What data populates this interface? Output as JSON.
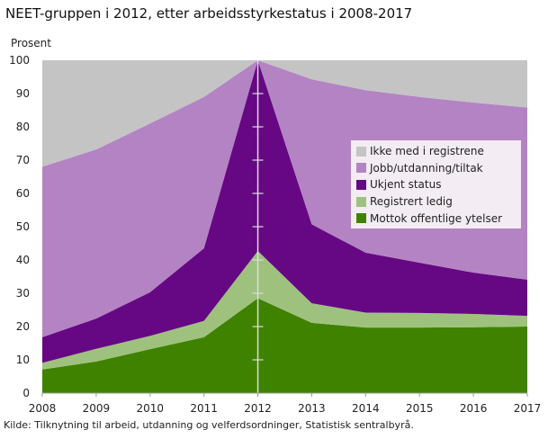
{
  "chart_data": {
    "type": "area",
    "stacked": true,
    "title": "NEET-gruppen i 2012, etter arbeidsstyrkestatus i 2008-2017",
    "ylabel": "Prosent",
    "xlabel": "",
    "ylim": [
      0,
      100
    ],
    "yticks": [
      0,
      10,
      20,
      30,
      40,
      50,
      60,
      70,
      80,
      90,
      100
    ],
    "x": [
      "2008",
      "2009",
      "2010",
      "2011",
      "2012",
      "2013",
      "2014",
      "2015",
      "2016",
      "2017"
    ],
    "legend_position": "right",
    "series": [
      {
        "name": "Mottok offentlige ytelser",
        "color": "#3f8200",
        "values": [
          7.1,
          9.5,
          13.2,
          16.8,
          28.5,
          21.1,
          19.7,
          19.7,
          19.8,
          20.0
        ]
      },
      {
        "name": "Registrert ledig",
        "color": "#9ec27e",
        "values": [
          2.0,
          3.8,
          4.0,
          4.9,
          14.2,
          5.9,
          4.5,
          4.4,
          4.0,
          3.2
        ]
      },
      {
        "name": "Ukjent status",
        "color": "#660883",
        "values": [
          7.7,
          9.1,
          13.1,
          21.8,
          57.3,
          23.7,
          18.0,
          15.1,
          12.4,
          10.9
        ]
      },
      {
        "name": "Jobb/utdanning/tiltak",
        "color": "#b383c3",
        "values": [
          51.2,
          50.8,
          50.7,
          45.5,
          0,
          43.6,
          48.8,
          49.8,
          51.1,
          51.7
        ]
      },
      {
        "name": "Ikke med i registrene",
        "color": "#c4c4c4",
        "values": [
          32.0,
          26.8,
          19.0,
          11.0,
          0,
          5.7,
          9.0,
          11.0,
          12.7,
          14.2
        ]
      }
    ],
    "source": "Kilde: Tilknytning til arbeid, utdanning og velferdsordninger, Statistisk sentralbyrå."
  }
}
